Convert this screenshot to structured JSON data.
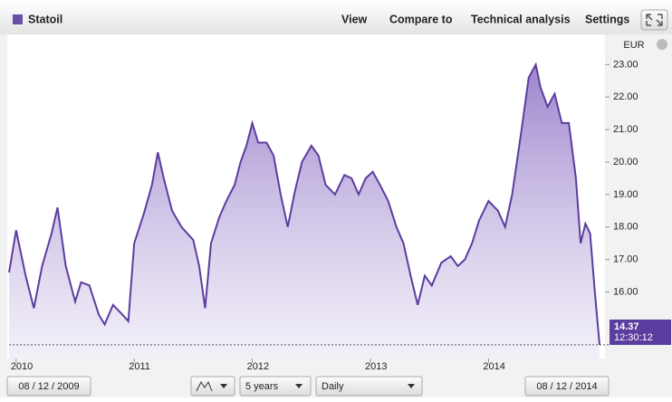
{
  "toolbar": {
    "menu": [
      "View",
      "Compare to",
      "Technical analysis",
      "Settings"
    ]
  },
  "controls": {
    "start_date": "08 / 12 / 2009",
    "period": "5 years",
    "interval": "Daily",
    "end_date": "08 / 12 / 2014"
  },
  "chart_data": {
    "type": "area",
    "currency": "EUR",
    "last_time": "12:30:12",
    "x": [
      2009.94,
      2010.0,
      2010.08,
      2010.15,
      2010.22,
      2010.3,
      2010.35,
      2010.42,
      2010.5,
      2010.55,
      2010.62,
      2010.7,
      2010.75,
      2010.82,
      2010.9,
      2010.95,
      2011.0,
      2011.08,
      2011.15,
      2011.2,
      2011.25,
      2011.32,
      2011.4,
      2011.45,
      2011.5,
      2011.55,
      2011.6,
      2011.65,
      2011.72,
      2011.78,
      2011.85,
      2011.9,
      2011.95,
      2012.0,
      2012.05,
      2012.12,
      2012.18,
      2012.24,
      2012.3,
      2012.36,
      2012.42,
      2012.5,
      2012.56,
      2012.62,
      2012.7,
      2012.78,
      2012.84,
      2012.9,
      2012.96,
      2013.02,
      2013.08,
      2013.15,
      2013.22,
      2013.28,
      2013.34,
      2013.4,
      2013.46,
      2013.52,
      2013.6,
      2013.68,
      2013.74,
      2013.8,
      2013.86,
      2013.92,
      2014.0,
      2014.08,
      2014.14,
      2014.2,
      2014.28,
      2014.34,
      2014.4,
      2014.44,
      2014.5,
      2014.56,
      2014.62,
      2014.68,
      2014.74,
      2014.78,
      2014.82,
      2014.86,
      2014.9,
      2014.94
    ],
    "series": [
      {
        "name": "Statoil",
        "color": "#5b3d9f",
        "values": [
          16.6,
          17.9,
          16.5,
          15.5,
          16.8,
          17.8,
          18.6,
          16.8,
          15.7,
          16.3,
          16.2,
          15.3,
          15.0,
          15.6,
          15.3,
          15.1,
          17.5,
          18.4,
          19.3,
          20.3,
          19.5,
          18.5,
          18.0,
          17.8,
          17.6,
          16.8,
          15.5,
          17.5,
          18.3,
          18.8,
          19.3,
          20.0,
          20.5,
          21.2,
          20.6,
          20.6,
          20.2,
          19.0,
          18.0,
          19.1,
          20.0,
          20.5,
          20.2,
          19.3,
          19.0,
          19.6,
          19.5,
          19.0,
          19.5,
          19.7,
          19.3,
          18.8,
          18.0,
          17.5,
          16.5,
          15.6,
          16.5,
          16.2,
          16.9,
          17.1,
          16.8,
          17.0,
          17.5,
          18.2,
          18.8,
          18.5,
          18.0,
          19.0,
          21.0,
          22.6,
          23.0,
          22.3,
          21.7,
          22.1,
          21.2,
          21.2,
          19.5,
          17.5,
          18.1,
          17.8,
          16.0,
          14.37
        ]
      }
    ],
    "xlim": [
      2009.94,
      2014.94
    ],
    "xticks": [
      2010,
      2011,
      2012,
      2013,
      2014
    ],
    "ylim": [
      13.95,
      23.93
    ],
    "yticks": [
      {
        "value": 16,
        "label": "16.00"
      },
      {
        "value": 17,
        "label": "17.00"
      },
      {
        "value": 18,
        "label": "18.00"
      },
      {
        "value": 19,
        "label": "19.00"
      },
      {
        "value": 20,
        "label": "20.00"
      },
      {
        "value": 21,
        "label": "21.00"
      },
      {
        "value": 22,
        "label": "22.00"
      },
      {
        "value": 23,
        "label": "23.00"
      }
    ]
  }
}
